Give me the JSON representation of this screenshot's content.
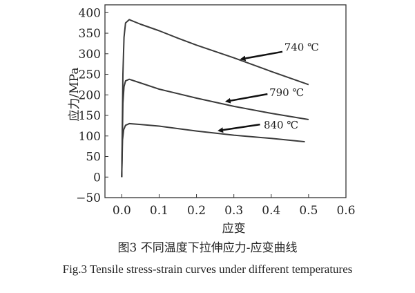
{
  "chart_data": {
    "type": "line",
    "xlabel": "应变",
    "ylabel": "应力/MPa",
    "xlim": [
      -0.045,
      0.6
    ],
    "ylim": [
      -50,
      419
    ],
    "xticks": [
      "0.0",
      "0.1",
      "0.2",
      "0.3",
      "0.4",
      "0.5",
      "0.6"
    ],
    "yticks": [
      "400",
      "350",
      "300",
      "250",
      "200",
      "150",
      "100",
      "50",
      "0",
      "-50"
    ],
    "grid": false,
    "line_color": "#3a3a3a",
    "series": [
      {
        "name": "740 ℃",
        "x": [
          0,
          0.003,
          0.006,
          0.01,
          0.02,
          0.05,
          0.1,
          0.15,
          0.2,
          0.3,
          0.4,
          0.5
        ],
        "y": [
          0,
          250,
          340,
          375,
          383,
          372,
          356,
          338,
          321,
          290,
          257,
          225
        ],
        "arrow": {
          "from": [
            0.43,
            305
          ],
          "to": [
            0.32,
            287
          ]
        },
        "label_at": [
          0.435,
          307
        ]
      },
      {
        "name": "790 ℃",
        "x": [
          0,
          0.003,
          0.006,
          0.01,
          0.02,
          0.05,
          0.1,
          0.2,
          0.3,
          0.4,
          0.5
        ],
        "y": [
          0,
          180,
          220,
          234,
          238,
          229,
          214,
          192,
          172,
          155,
          140
        ],
        "arrow": {
          "from": [
            0.39,
            202
          ],
          "to": [
            0.28,
            184
          ]
        },
        "label_at": [
          0.395,
          197
        ]
      },
      {
        "name": "840 ℃",
        "x": [
          0,
          0.002,
          0.005,
          0.01,
          0.02,
          0.05,
          0.1,
          0.2,
          0.3,
          0.4,
          0.49
        ],
        "y": [
          0,
          90,
          115,
          126,
          130,
          128,
          124,
          112,
          102,
          94,
          86
        ],
        "arrow": {
          "from": [
            0.37,
            128
          ],
          "to": [
            0.26,
            113
          ]
        },
        "label_at": [
          0.38,
          118
        ]
      }
    ]
  },
  "captions": {
    "cn": "图3  不同温度下拉伸应力-应变曲线",
    "en": "Fig.3  Tensile stress-strain curves under different temperatures"
  }
}
